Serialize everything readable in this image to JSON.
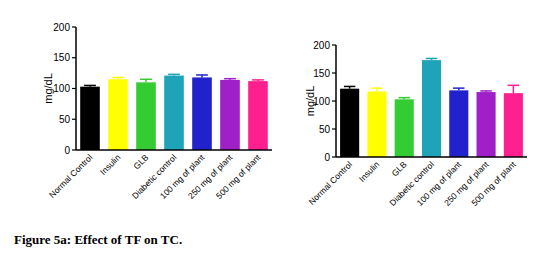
{
  "caption": "Figure 5a: Effect of TF on TC.",
  "chart_data": [
    {
      "type": "bar",
      "y_label": "mg/dL",
      "categories": [
        "Normal Control",
        "Insulin",
        "GLB",
        "Diabetic control",
        "100 mg of plant",
        "250 mg of plant",
        "500 mg of plant"
      ],
      "values": [
        103,
        115,
        110,
        121,
        118,
        114,
        112
      ],
      "errors": [
        2,
        3,
        5,
        2,
        4,
        2,
        2
      ],
      "colors": [
        "#000000",
        "#ffff00",
        "#33cc33",
        "#1fa3b8",
        "#2222cc",
        "#a020c8",
        "#ff1f8f"
      ],
      "ylim": [
        0,
        200
      ],
      "yticks": [
        0,
        50,
        100,
        150,
        200
      ],
      "grid": false
    },
    {
      "type": "bar",
      "y_label": "mg/dL",
      "categories": [
        "Normal Control",
        "Insulin",
        "GLB",
        "Diabetic control",
        "100 mg of plant",
        "250 mg of plant",
        "500 mg of plant"
      ],
      "values": [
        122,
        117,
        103,
        173,
        119,
        116,
        114
      ],
      "errors": [
        4,
        6,
        3,
        3,
        4,
        2,
        14
      ],
      "colors": [
        "#000000",
        "#ffff00",
        "#33cc33",
        "#1fa3b8",
        "#2222cc",
        "#a020c8",
        "#ff1f8f"
      ],
      "ylim": [
        0,
        200
      ],
      "yticks": [
        0,
        50,
        100,
        150,
        200
      ],
      "grid": false
    }
  ]
}
